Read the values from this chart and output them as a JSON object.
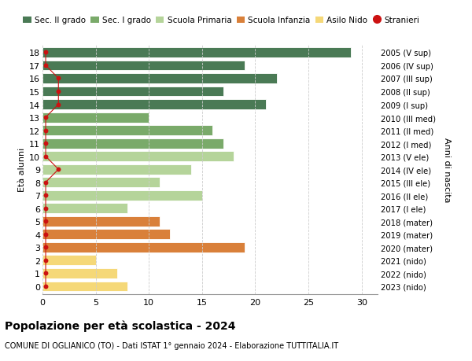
{
  "ages": [
    18,
    17,
    16,
    15,
    14,
    13,
    12,
    11,
    10,
    9,
    8,
    7,
    6,
    5,
    4,
    3,
    2,
    1,
    0
  ],
  "years": [
    "2005 (V sup)",
    "2006 (IV sup)",
    "2007 (III sup)",
    "2008 (II sup)",
    "2009 (I sup)",
    "2010 (III med)",
    "2011 (II med)",
    "2012 (I med)",
    "2013 (V ele)",
    "2014 (IV ele)",
    "2015 (III ele)",
    "2016 (II ele)",
    "2017 (I ele)",
    "2018 (mater)",
    "2019 (mater)",
    "2020 (mater)",
    "2021 (nido)",
    "2022 (nido)",
    "2023 (nido)"
  ],
  "values": [
    29,
    19,
    22,
    17,
    21,
    10,
    16,
    17,
    18,
    14,
    11,
    15,
    8,
    11,
    12,
    19,
    5,
    7,
    8
  ],
  "colors": [
    "#4a7a55",
    "#4a7a55",
    "#4a7a55",
    "#4a7a55",
    "#4a7a55",
    "#7aaa6a",
    "#7aaa6a",
    "#7aaa6a",
    "#b5d49a",
    "#b5d49a",
    "#b5d49a",
    "#b5d49a",
    "#b5d49a",
    "#d9803a",
    "#d9803a",
    "#d9803a",
    "#f5d878",
    "#f5d878",
    "#f5d878"
  ],
  "stranieri_x": [
    0.3,
    0.3,
    1.5,
    1.5,
    1.5,
    0.3,
    0.3,
    0.3,
    0.3,
    1.5,
    0.3,
    0.3,
    0.3,
    0.3,
    0.3,
    0.3,
    0.3,
    0.3,
    0.3
  ],
  "legend_labels": [
    "Sec. II grado",
    "Sec. I grado",
    "Scuola Primaria",
    "Scuola Infanzia",
    "Asilo Nido",
    "Stranieri"
  ],
  "legend_colors": [
    "#4a7a55",
    "#7aaa6a",
    "#b5d49a",
    "#d9803a",
    "#f5d878",
    "#cc1111"
  ],
  "title": "Popolazione per età scolastica - 2024",
  "subtitle": "COMUNE DI OGLIANICO (TO) - Dati ISTAT 1° gennaio 2024 - Elaborazione TUTTITALIA.IT",
  "ylabel_left": "Età alunni",
  "ylabel_right": "Anni di nascita",
  "xlim": [
    0,
    31.5
  ],
  "ylim": [
    -0.6,
    18.6
  ],
  "xticks": [
    0,
    5,
    10,
    15,
    20,
    25,
    30
  ],
  "bg_color": "#ffffff",
  "bar_height": 0.78,
  "grid_color": "#cccccc",
  "stranieri_color": "#cc1111"
}
